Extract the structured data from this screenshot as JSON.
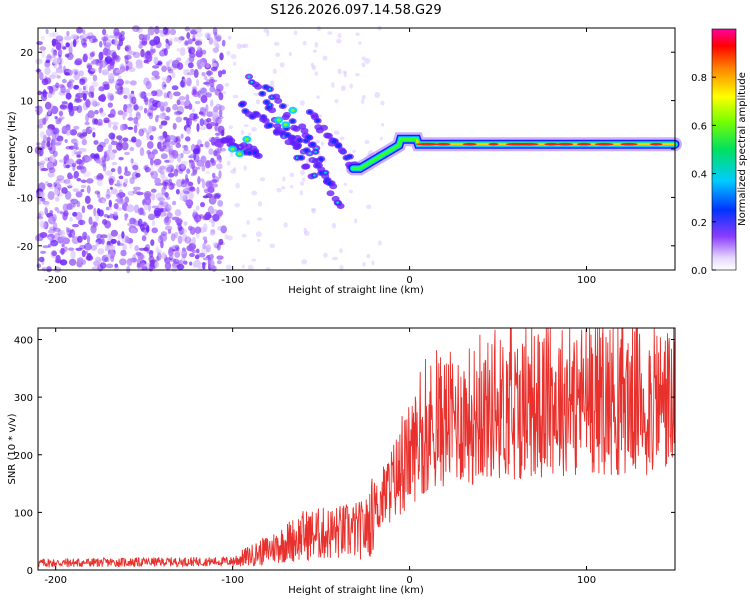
{
  "title": "S126.2026.097.14.58.G29",
  "chart_data": [
    {
      "type": "heatmap",
      "xlabel": "Height of straight line (km)",
      "ylabel": "Frequency (Hz)",
      "xlim": [
        -210,
        150
      ],
      "ylim": [
        -25,
        25
      ],
      "xticks": [
        -200,
        -100,
        0,
        100
      ],
      "yticks": [
        -20,
        -10,
        0,
        10,
        20
      ],
      "colorbar": {
        "label": "Normalized spectral amplitude",
        "range": [
          0,
          1
        ],
        "ticks": [
          "0.0",
          "0.2",
          "0.4",
          "0.6",
          "0.8"
        ]
      },
      "features": [
        {
          "description": "noise",
          "x_range": [
            -210,
            -105
          ],
          "y_range": [
            -25,
            25
          ]
        },
        {
          "description": "descending traces",
          "x_range": [
            -105,
            -30
          ],
          "y_start": 15,
          "y_end": -4
        },
        {
          "description": "steady signal",
          "x_range": [
            -30,
            150
          ],
          "y": 1,
          "amplitude": "high"
        }
      ]
    },
    {
      "type": "line",
      "xlabel": "Height of straight line (km)",
      "ylabel": "SNR (10 * v/v)",
      "xlim": [
        -210,
        150
      ],
      "ylim": [
        0,
        420
      ],
      "xticks": [
        -200,
        -100,
        0,
        100
      ],
      "yticks": [
        0,
        100,
        200,
        300,
        400
      ],
      "color": "#e8302c",
      "profile": {
        "x": [
          -210,
          -100,
          -90,
          -80,
          -60,
          -40,
          -25,
          -20,
          -10,
          0,
          10,
          20,
          50,
          100,
          150
        ],
        "y": [
          12,
          15,
          25,
          35,
          60,
          65,
          70,
          100,
          150,
          200,
          250,
          260,
          280,
          300,
          295
        ]
      }
    }
  ]
}
